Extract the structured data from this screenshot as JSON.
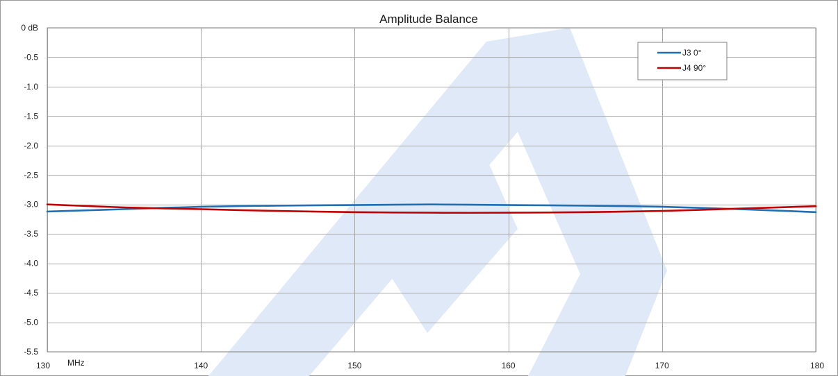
{
  "chart_data": {
    "type": "line",
    "title": "Amplitude Balance",
    "xlabel": "MHz",
    "ylabel": "",
    "xlim": [
      130,
      180
    ],
    "ylim": [
      -5.5,
      0
    ],
    "x_ticks": [
      130,
      140,
      150,
      160,
      170,
      180
    ],
    "x_tick_labels": [
      "130",
      "140",
      "150",
      "160",
      "170",
      "180"
    ],
    "y_ticks": [
      0,
      -0.5,
      -1.0,
      -1.5,
      -2.0,
      -2.5,
      -3.0,
      -3.5,
      -4.0,
      -4.5,
      -5.0,
      -5.5
    ],
    "y_tick_labels": [
      "0 dB",
      "-0.5",
      "-1.0",
      "-1.5",
      "-2.0",
      "-2.5",
      "-3.0",
      "-3.5",
      "-4.0",
      "-4.5",
      "-5.0",
      "-5.5"
    ],
    "grid": true,
    "legend_position": "top-right",
    "series": [
      {
        "name": "J3 0°",
        "color": "#1f6fb5",
        "x": [
          130,
          135,
          140,
          145,
          150,
          155,
          160,
          165,
          170,
          175,
          180
        ],
        "y": [
          -3.12,
          -3.08,
          -3.04,
          -3.02,
          -3.01,
          -3.0,
          -3.01,
          -3.02,
          -3.04,
          -3.08,
          -3.13
        ]
      },
      {
        "name": "J4 90°",
        "color": "#c00000",
        "x": [
          130,
          135,
          140,
          145,
          150,
          155,
          160,
          165,
          170,
          175,
          180
        ],
        "y": [
          -3.0,
          -3.05,
          -3.08,
          -3.11,
          -3.13,
          -3.14,
          -3.14,
          -3.13,
          -3.11,
          -3.07,
          -3.03
        ]
      }
    ]
  }
}
